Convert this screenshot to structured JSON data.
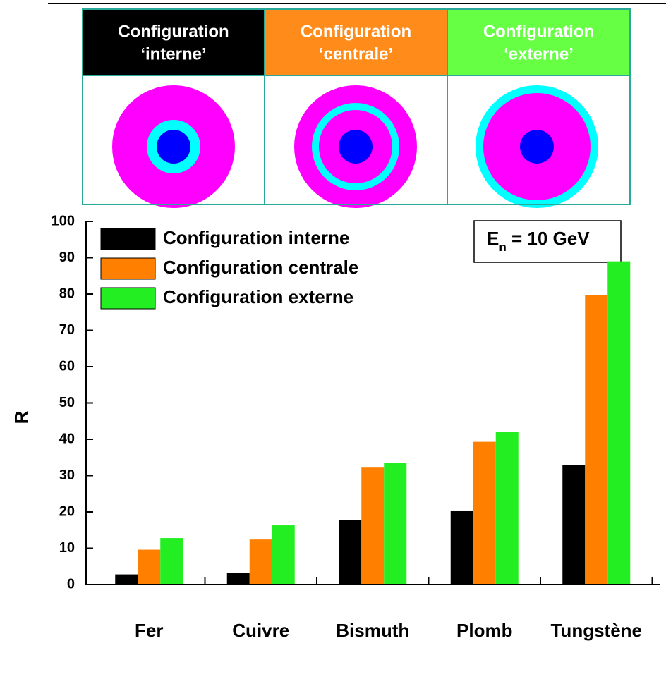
{
  "chart_data": {
    "type": "bar",
    "configurations": [
      {
        "lines": [
          "Configuration",
          "‘interne’"
        ],
        "color": "#000000"
      },
      {
        "lines": [
          "Configuration",
          "‘centrale’"
        ],
        "color": "#ff8c1a"
      },
      {
        "lines": [
          "Configuration",
          "‘externe’"
        ],
        "color": "#66ff44"
      }
    ],
    "y_label": "R",
    "annotation": {
      "text": "E",
      "subscript": "n",
      "suffix": " = 10 GeV"
    },
    "categories": [
      "Fer",
      "Cuivre",
      "Bismuth",
      "Plomb",
      "Tungstène"
    ],
    "series": [
      {
        "name": "Configuration interne",
        "color": "#000000",
        "values": [
          2.8,
          3.3,
          17.7,
          20.2,
          32.9
        ]
      },
      {
        "name": "Configuration centrale",
        "color": "#ff8000",
        "values": [
          9.6,
          12.4,
          32.2,
          39.3,
          79.7
        ]
      },
      {
        "name": "Configuration externe",
        "color": "#22ee22",
        "values": [
          12.8,
          16.3,
          33.5,
          42.1,
          89.0
        ]
      }
    ],
    "ylim": [
      0,
      100
    ],
    "yticks": [
      0,
      10,
      20,
      30,
      40,
      50,
      60,
      70,
      80,
      90,
      100
    ],
    "legend": "top-left"
  }
}
